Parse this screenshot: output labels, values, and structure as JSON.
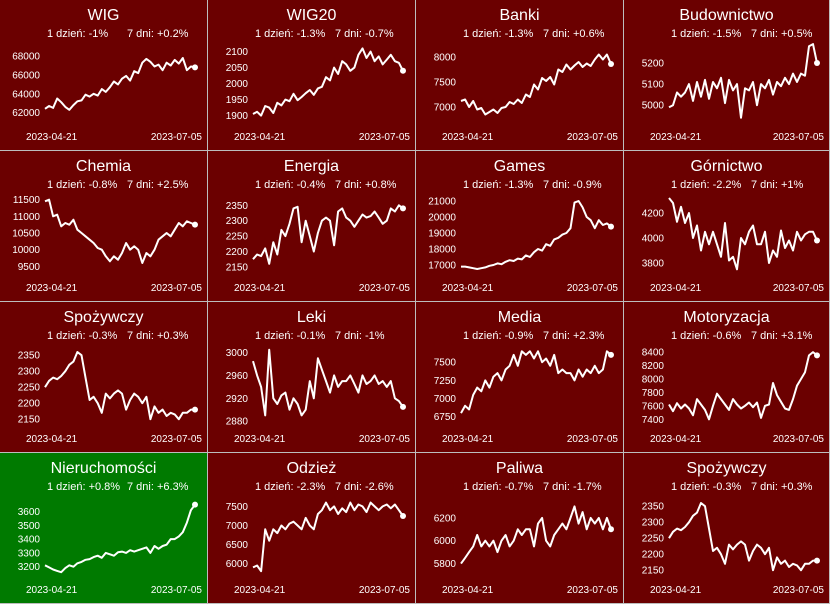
{
  "colors": {
    "down": "#6b0000",
    "up": "#007a00",
    "line": "#ffffff",
    "border": "#bdbdbd"
  },
  "start_date": "2023-04-21",
  "end_date": "2023-07-05",
  "chart_data": [
    {
      "type": "line",
      "title": "WIG",
      "d1": "1 dzień: -1%",
      "d7": "7 dni: +0.2%",
      "trend": "down",
      "yticks": [
        62000,
        64000,
        66000,
        68000
      ],
      "ylim": [
        61000,
        69500
      ],
      "values": [
        62400,
        62700,
        62500,
        63500,
        63100,
        62600,
        62300,
        62800,
        63200,
        63300,
        63900,
        63700,
        64000,
        63800,
        64500,
        64200,
        64700,
        65300,
        65000,
        65600,
        65900,
        65400,
        66400,
        66200,
        67300,
        67700,
        67400,
        66900,
        67100,
        66500,
        67300,
        67000,
        67600,
        67200,
        67800,
        66500,
        66900,
        66800
      ]
    },
    {
      "type": "line",
      "title": "WIG20",
      "d1": "1 dzień: -1.3%",
      "d7": "7 dni: -0.7%",
      "trend": "down",
      "yticks": [
        1900,
        1950,
        2000,
        2050,
        2100
      ],
      "ylim": [
        1880,
        2130
      ],
      "values": [
        1905,
        1912,
        1900,
        1930,
        1925,
        1908,
        1940,
        1932,
        1950,
        1945,
        1968,
        1948,
        1958,
        1970,
        1980,
        1965,
        1985,
        1990,
        2020,
        2010,
        2050,
        2030,
        2070,
        2060,
        2040,
        2050,
        2090,
        2110,
        2080,
        2100,
        2070,
        2085,
        2060,
        2075,
        2090,
        2070,
        2065,
        2040
      ]
    },
    {
      "type": "line",
      "title": "Banki",
      "d1": "1 dzień: -1.3%",
      "d7": "7 dni: +0.6%",
      "trend": "down",
      "yticks": [
        7000,
        7500,
        8000
      ],
      "ylim": [
        6700,
        8300
      ],
      "values": [
        7120,
        7150,
        7000,
        7120,
        6950,
        6980,
        6850,
        6900,
        6950,
        6880,
        6980,
        7000,
        7100,
        7060,
        7150,
        7080,
        7250,
        7200,
        7450,
        7350,
        7580,
        7520,
        7600,
        7450,
        7750,
        7700,
        7850,
        7750,
        7830,
        7900,
        7800,
        7870,
        7820,
        7950,
        8050,
        7950,
        8050,
        7860
      ]
    },
    {
      "type": "line",
      "title": "Budownictwo",
      "d1": "1 dzień: -1.5%",
      "d7": "7 dni: +0.5%",
      "trend": "down",
      "yticks": [
        5000,
        5100,
        5200
      ],
      "ylim": [
        4920,
        5300
      ],
      "values": [
        4990,
        5000,
        5060,
        5040,
        5060,
        5100,
        5020,
        5110,
        5040,
        5120,
        5030,
        5110,
        5080,
        5130,
        5010,
        5120,
        5070,
        5100,
        4940,
        5080,
        5070,
        5110,
        5000,
        5100,
        5080,
        5120,
        5050,
        5110,
        5090,
        5130,
        5100,
        5150,
        5110,
        5150,
        5140,
        5280,
        5290,
        5200
      ]
    },
    {
      "type": "line",
      "title": "Chemia",
      "d1": "1 dzień: -0.8%",
      "d7": "7 dni: +2.5%",
      "trend": "down",
      "yticks": [
        9500,
        10000,
        10500,
        11000,
        11500
      ],
      "ylim": [
        9300,
        11700
      ],
      "values": [
        11450,
        11500,
        11000,
        11050,
        10700,
        10800,
        10750,
        10900,
        10600,
        10500,
        10400,
        10300,
        10200,
        10050,
        10000,
        9800,
        9650,
        9800,
        9700,
        9900,
        10200,
        10000,
        10100,
        10000,
        9600,
        9900,
        9800,
        10000,
        10300,
        10400,
        10500,
        10400,
        10600,
        10800,
        10700,
        10850,
        10800,
        10750
      ]
    },
    {
      "type": "line",
      "title": "Energia",
      "d1": "1 dzień: -0.4%",
      "d7": "7 dni: +0.8%",
      "trend": "down",
      "yticks": [
        2150,
        2200,
        2250,
        2300,
        2350
      ],
      "ylim": [
        2130,
        2390
      ],
      "values": [
        2175,
        2190,
        2185,
        2210,
        2160,
        2230,
        2190,
        2270,
        2250,
        2290,
        2340,
        2345,
        2230,
        2300,
        2250,
        2200,
        2260,
        2300,
        2310,
        2300,
        2220,
        2330,
        2340,
        2310,
        2300,
        2280,
        2300,
        2320,
        2310,
        2315,
        2330,
        2310,
        2290,
        2300,
        2340,
        2330,
        2350,
        2340
      ]
    },
    {
      "type": "line",
      "title": "Games",
      "d1": "1 dzień: -1.3%",
      "d7": "7 dni: -0.9%",
      "trend": "down",
      "yticks": [
        17000,
        18000,
        19000,
        20000,
        21000
      ],
      "ylim": [
        16500,
        21500
      ],
      "values": [
        16900,
        16900,
        16850,
        16800,
        16750,
        16800,
        16850,
        16950,
        17000,
        17100,
        17050,
        17200,
        17300,
        17250,
        17400,
        17350,
        17600,
        17500,
        17800,
        18000,
        17900,
        18300,
        18200,
        18600,
        18700,
        18900,
        19000,
        19300,
        20900,
        21000,
        20600,
        20000,
        19800,
        19300,
        19800,
        19500,
        19600,
        19400
      ]
    },
    {
      "type": "line",
      "title": "Górnictwo",
      "d1": "1 dzień: -2.2%",
      "d7": "7 dni: +1%",
      "trend": "down",
      "yticks": [
        3800,
        4000,
        4200
      ],
      "ylim": [
        3720,
        4360
      ],
      "values": [
        4320,
        4280,
        4130,
        4250,
        4120,
        4200,
        4000,
        4100,
        3900,
        4050,
        3950,
        4050,
        3950,
        3850,
        4120,
        3820,
        3850,
        3750,
        4000,
        3950,
        4050,
        4100,
        3950,
        3950,
        4050,
        3800,
        3900,
        3850,
        4060,
        3920,
        3980,
        3900,
        4050,
        3980,
        4030,
        4050,
        4050,
        3980
      ]
    },
    {
      "type": "line",
      "title": "Spożywczy",
      "d1": "1 dzień: -0.3%",
      "d7": "7 dni: +0.3%",
      "trend": "down",
      "yticks": [
        2150,
        2200,
        2250,
        2300,
        2350
      ],
      "ylim": [
        2135,
        2385
      ],
      "values": [
        2250,
        2270,
        2280,
        2275,
        2285,
        2300,
        2320,
        2330,
        2360,
        2350,
        2280,
        2210,
        2220,
        2200,
        2170,
        2230,
        2215,
        2230,
        2240,
        2230,
        2180,
        2210,
        2230,
        2220,
        2200,
        2220,
        2150,
        2190,
        2170,
        2180,
        2160,
        2170,
        2165,
        2150,
        2170,
        2170,
        2180,
        2180
      ]
    },
    {
      "type": "line",
      "title": "Leki",
      "d1": "1 dzień: -0.1%",
      "d7": "7 dni: -1%",
      "trend": "down",
      "yticks": [
        2880,
        2920,
        2960,
        3000
      ],
      "ylim": [
        2875,
        3015
      ],
      "values": [
        2985,
        2960,
        2940,
        2890,
        3005,
        2920,
        2910,
        2925,
        2930,
        2900,
        2920,
        2910,
        2890,
        2900,
        2950,
        2920,
        2990,
        2970,
        2950,
        2930,
        2960,
        2940,
        2950,
        2950,
        2960,
        2945,
        2930,
        2960,
        2945,
        2950,
        2960,
        2945,
        2950,
        2940,
        2950,
        2920,
        2915,
        2905
      ]
    },
    {
      "type": "line",
      "title": "Media",
      "d1": "1 dzień: -0.9%",
      "d7": "7 dni: +2.3%",
      "trend": "down",
      "yticks": [
        6750,
        7000,
        7250,
        7500
      ],
      "ylim": [
        6650,
        7750
      ],
      "values": [
        6800,
        6900,
        6850,
        7050,
        7150,
        7100,
        7250,
        7150,
        7300,
        7350,
        7250,
        7400,
        7450,
        7600,
        7450,
        7650,
        7600,
        7650,
        7550,
        7650,
        7500,
        7550,
        7450,
        7600,
        7350,
        7400,
        7350,
        7350,
        7250,
        7400,
        7300,
        7400,
        7350,
        7450,
        7350,
        7400,
        7650,
        7600
      ]
    },
    {
      "type": "line",
      "title": "Motoryzacja",
      "d1": "1 dzień: -0.6%",
      "d7": "7 dni: +3.1%",
      "trend": "down",
      "yticks": [
        7400,
        7600,
        7800,
        8000,
        8200,
        8400
      ],
      "ylim": [
        7330,
        8520
      ],
      "values": [
        7620,
        7520,
        7640,
        7560,
        7620,
        7560,
        7460,
        7700,
        7620,
        7540,
        7400,
        7600,
        7780,
        7700,
        7620,
        7540,
        7700,
        7620,
        7560,
        7600,
        7650,
        7580,
        7650,
        7420,
        7600,
        7620,
        7940,
        7760,
        7660,
        7560,
        7540,
        7700,
        7900,
        8000,
        8100,
        8350,
        8400,
        8350
      ]
    },
    {
      "type": "line",
      "title": "Nieruchomości",
      "d1": "1 dzień: +0.8%",
      "d7": "7 dni: +6.3%",
      "trend": "up",
      "yticks": [
        3200,
        3300,
        3400,
        3500,
        3600
      ],
      "ylim": [
        3140,
        3720
      ],
      "values": [
        3210,
        3195,
        3180,
        3170,
        3160,
        3190,
        3210,
        3200,
        3225,
        3235,
        3250,
        3255,
        3270,
        3280,
        3265,
        3300,
        3290,
        3280,
        3305,
        3310,
        3300,
        3320,
        3310,
        3320,
        3330,
        3340,
        3300,
        3350,
        3330,
        3350,
        3360,
        3400,
        3400,
        3420,
        3450,
        3520,
        3610,
        3650
      ]
    },
    {
      "type": "line",
      "title": "Odzież",
      "d1": "1 dzień: -2.3%",
      "d7": "7 dni: -2.6%",
      "trend": "down",
      "yticks": [
        6000,
        6500,
        7000,
        7500
      ],
      "ylim": [
        5700,
        7800
      ],
      "values": [
        5900,
        5950,
        5800,
        6900,
        6600,
        6900,
        6800,
        7000,
        6900,
        7050,
        7100,
        7000,
        6900,
        7200,
        7000,
        6900,
        7300,
        7400,
        7600,
        7400,
        7500,
        7300,
        7450,
        7350,
        7600,
        7400,
        7550,
        7500,
        7350,
        7600,
        7500,
        7400,
        7500,
        7550,
        7450,
        7550,
        7400,
        7250
      ]
    },
    {
      "type": "line",
      "title": "Paliwa",
      "d1": "1 dzień: -0.7%",
      "d7": "7 dni: -1.7%",
      "trend": "down",
      "yticks": [
        5800,
        6000,
        6200
      ],
      "ylim": [
        5700,
        6400
      ],
      "values": [
        5800,
        5850,
        5900,
        5950,
        6050,
        5950,
        6000,
        5950,
        6000,
        5900,
        6000,
        6050,
        5950,
        6000,
        6100,
        6050,
        6100,
        6100,
        5950,
        6150,
        6200,
        6000,
        5950,
        6050,
        6100,
        6150,
        6100,
        6200,
        6300,
        6150,
        6250,
        6100,
        6200,
        6150,
        6200,
        6100,
        6200,
        6100
      ]
    },
    {
      "type": "line",
      "title": "Spożywczy",
      "d1": "1 dzień: -0.3%",
      "d7": "7 dni: +0.3%",
      "trend": "down",
      "yticks": [
        2150,
        2200,
        2250,
        2300,
        2350
      ],
      "ylim": [
        2135,
        2385
      ],
      "values": [
        2250,
        2270,
        2280,
        2275,
        2285,
        2300,
        2320,
        2330,
        2360,
        2350,
        2280,
        2210,
        2220,
        2200,
        2170,
        2230,
        2215,
        2230,
        2240,
        2230,
        2180,
        2210,
        2230,
        2220,
        2200,
        2220,
        2150,
        2190,
        2170,
        2180,
        2160,
        2170,
        2165,
        2150,
        2170,
        2170,
        2180,
        2180
      ]
    }
  ]
}
